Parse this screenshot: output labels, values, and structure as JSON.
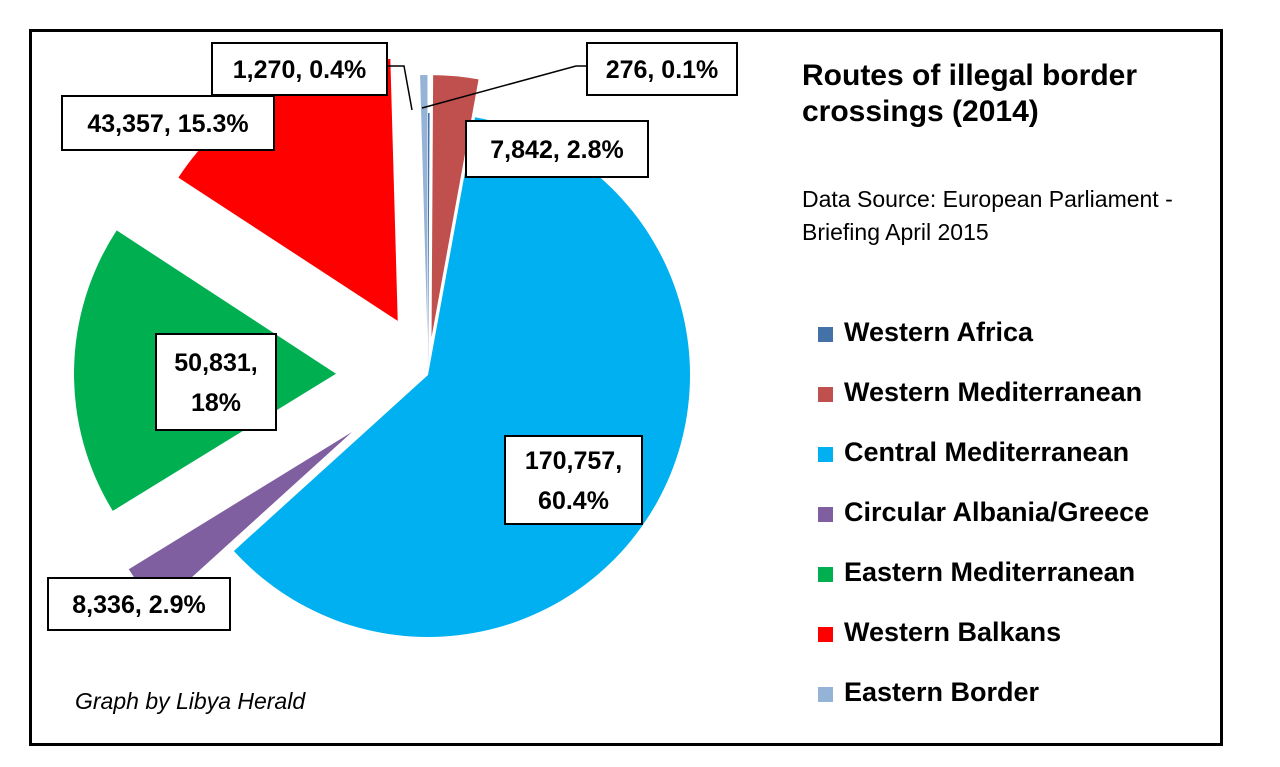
{
  "chart_data": {
    "type": "pie",
    "title": "Routes of illegal border crossings (2014)",
    "source": "Data Source: European Parliament - Briefing April 2015",
    "credit": "Graph by Libya Herald",
    "legend_position": "right",
    "slices": [
      {
        "name": "Western Africa",
        "value": 276,
        "percent": 0.1,
        "label_lines": [
          "276, 0.1%"
        ],
        "color": "#4472a8"
      },
      {
        "name": "Western Mediterranean",
        "value": 7842,
        "percent": 2.8,
        "label_lines": [
          "7,842, 2.8%"
        ],
        "color": "#c0504d"
      },
      {
        "name": "Central Mediterranean",
        "value": 170757,
        "percent": 60.4,
        "label_lines": [
          "170,757,",
          "60.4%"
        ],
        "color": "#00b0f0"
      },
      {
        "name": "Circular Albania/Greece",
        "value": 8336,
        "percent": 2.9,
        "label_lines": [
          "8,336, 2.9%"
        ],
        "color": "#7f5fa0"
      },
      {
        "name": "Eastern Mediterranean",
        "value": 50831,
        "percent": 18,
        "label_lines": [
          "50,831,",
          "18%"
        ],
        "color": "#00b050"
      },
      {
        "name": "Western Balkans",
        "value": 43357,
        "percent": 15.3,
        "label_lines": [
          "43,357, 15.3%"
        ],
        "color": "#ff0000"
      },
      {
        "name": "Eastern Border",
        "value": 1270,
        "percent": 0.4,
        "label_lines": [
          "1,270, 0.4%"
        ],
        "color": "#95b3d7"
      }
    ]
  }
}
